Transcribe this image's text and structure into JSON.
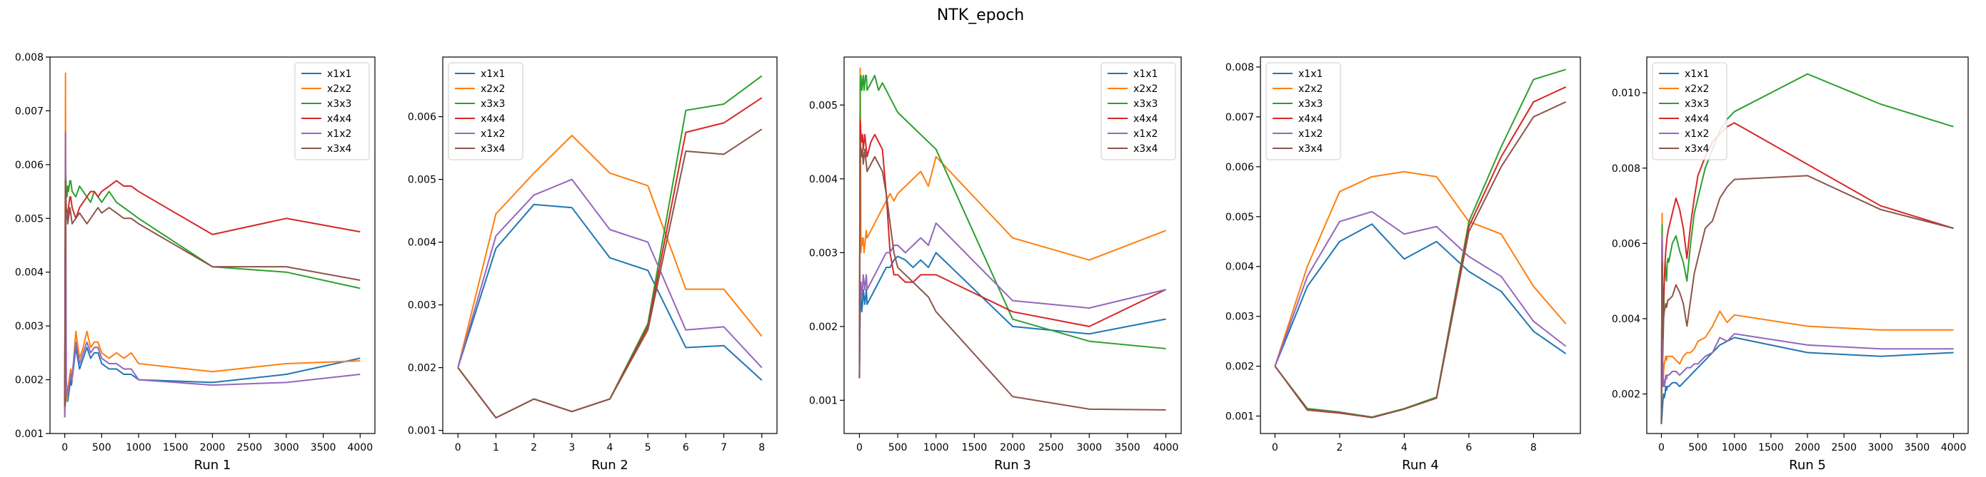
{
  "figure": {
    "title": "NTK_epoch"
  },
  "series_names": [
    "x1x1",
    "x2x2",
    "x3x3",
    "x4x4",
    "x1x2",
    "x3x4"
  ],
  "colors": [
    "#1f77b4",
    "#ff7f0e",
    "#2ca02c",
    "#d62728",
    "#9467bd",
    "#8c564b"
  ],
  "chart_data": [
    {
      "type": "line",
      "xlabel": "Run 1",
      "legend": "top-right",
      "xlim": [
        -200,
        4200
      ],
      "ylim": [
        0.001,
        0.008
      ],
      "xticks": [
        0,
        500,
        1000,
        1500,
        2000,
        2500,
        3000,
        3500,
        4000
      ],
      "yticks": [
        0.001,
        0.002,
        0.003,
        0.004,
        0.005,
        0.006,
        0.007,
        0.008
      ],
      "ytick_labels": [
        "0.001",
        "0.002",
        "0.003",
        "0.004",
        "0.005",
        "0.006",
        "0.007",
        "0.008"
      ],
      "x": [
        0,
        10,
        20,
        30,
        40,
        50,
        60,
        70,
        80,
        90,
        100,
        150,
        200,
        250,
        300,
        350,
        400,
        450,
        500,
        600,
        700,
        800,
        900,
        1000,
        2000,
        3000,
        4000
      ],
      "series": [
        {
          "name": "x1x1",
          "values": [
            0.0014,
            0.0016,
            0.0018,
            0.0017,
            0.0016,
            0.0017,
            0.0018,
            0.0019,
            0.002,
            0.0019,
            0.002,
            0.0026,
            0.0022,
            0.0024,
            0.0026,
            0.0024,
            0.0025,
            0.0025,
            0.0023,
            0.0022,
            0.0022,
            0.0021,
            0.0021,
            0.002,
            0.00195,
            0.0021,
            0.0024
          ]
        },
        {
          "name": "x2x2",
          "values": [
            0.0013,
            0.0077,
            0.002,
            0.0016,
            0.0018,
            0.0019,
            0.002,
            0.0021,
            0.0022,
            0.0021,
            0.002,
            0.0029,
            0.0024,
            0.0026,
            0.0029,
            0.0026,
            0.0027,
            0.0027,
            0.0025,
            0.0024,
            0.0025,
            0.0024,
            0.0025,
            0.0023,
            0.00215,
            0.0023,
            0.00235
          ]
        },
        {
          "name": "x3x3",
          "values": [
            0.0016,
            0.006,
            0.0055,
            0.0054,
            0.0056,
            0.0055,
            0.0056,
            0.0057,
            0.0057,
            0.0056,
            0.0055,
            0.0054,
            0.0056,
            0.0055,
            0.0054,
            0.0053,
            0.0055,
            0.0054,
            0.0053,
            0.0055,
            0.0053,
            0.0052,
            0.0051,
            0.005,
            0.0041,
            0.004,
            0.0037
          ]
        },
        {
          "name": "x4x4",
          "values": [
            0.0015,
            0.0055,
            0.0051,
            0.005,
            0.0051,
            0.0052,
            0.0053,
            0.0054,
            0.0054,
            0.0053,
            0.0052,
            0.005,
            0.0052,
            0.0053,
            0.0054,
            0.0055,
            0.0055,
            0.0054,
            0.0055,
            0.0056,
            0.0057,
            0.0056,
            0.0056,
            0.0055,
            0.0047,
            0.005,
            0.00475
          ]
        },
        {
          "name": "x1x2",
          "values": [
            0.0013,
            0.0066,
            0.002,
            0.0018,
            0.0017,
            0.0018,
            0.0019,
            0.002,
            0.0021,
            0.002,
            0.0021,
            0.0027,
            0.0023,
            0.0025,
            0.0027,
            0.0025,
            0.0026,
            0.0026,
            0.0024,
            0.0023,
            0.0023,
            0.0022,
            0.0022,
            0.002,
            0.0019,
            0.00195,
            0.0021
          ]
        },
        {
          "name": "x3x4",
          "values": [
            0.0015,
            0.0057,
            0.0052,
            0.0051,
            0.0049,
            0.005,
            0.0051,
            0.0052,
            0.0051,
            0.005,
            0.0049,
            0.005,
            0.0051,
            0.005,
            0.0049,
            0.005,
            0.0051,
            0.0052,
            0.0051,
            0.0052,
            0.0051,
            0.005,
            0.005,
            0.0049,
            0.0041,
            0.0041,
            0.00385
          ]
        }
      ]
    },
    {
      "type": "line",
      "xlabel": "Run 2",
      "legend": "top-left",
      "xlim": [
        -0.4,
        8.4
      ],
      "ylim": [
        0.00095,
        0.00695
      ],
      "xticks": [
        0,
        1,
        2,
        3,
        4,
        5,
        6,
        7,
        8
      ],
      "yticks": [
        0.001,
        0.002,
        0.003,
        0.004,
        0.005,
        0.006
      ],
      "ytick_labels": [
        "0.001",
        "0.002",
        "0.003",
        "0.004",
        "0.005",
        "0.006"
      ],
      "x": [
        0,
        1,
        2,
        3,
        4,
        5,
        6,
        7,
        8
      ],
      "series": [
        {
          "name": "x1x1",
          "values": [
            0.002,
            0.0039,
            0.0046,
            0.00455,
            0.00375,
            0.00355,
            0.00232,
            0.00235,
            0.0018
          ]
        },
        {
          "name": "x2x2",
          "values": [
            0.002,
            0.00445,
            0.0051,
            0.0057,
            0.0051,
            0.0049,
            0.00325,
            0.00325,
            0.0025
          ]
        },
        {
          "name": "x3x3",
          "values": [
            0.002,
            0.0012,
            0.0015,
            0.0013,
            0.0015,
            0.0027,
            0.0061,
            0.0062,
            0.00665
          ]
        },
        {
          "name": "x4x4",
          "values": [
            0.002,
            0.0012,
            0.0015,
            0.0013,
            0.0015,
            0.00265,
            0.00575,
            0.0059,
            0.0063
          ]
        },
        {
          "name": "x1x2",
          "values": [
            0.002,
            0.0041,
            0.00475,
            0.005,
            0.0042,
            0.004,
            0.0026,
            0.00265,
            0.002
          ]
        },
        {
          "name": "x3x4",
          "values": [
            0.002,
            0.0012,
            0.0015,
            0.0013,
            0.0015,
            0.0026,
            0.00545,
            0.0054,
            0.0058
          ]
        }
      ]
    },
    {
      "type": "line",
      "xlabel": "Run 3",
      "legend": "top-right",
      "xlim": [
        -200,
        4200
      ],
      "ylim": [
        0.00055,
        0.00565
      ],
      "xticks": [
        0,
        500,
        1000,
        1500,
        2000,
        2500,
        3000,
        3500,
        4000
      ],
      "yticks": [
        0.001,
        0.002,
        0.003,
        0.004,
        0.005
      ],
      "ytick_labels": [
        "0.001",
        "0.002",
        "0.003",
        "0.004",
        "0.005"
      ],
      "x": [
        0,
        10,
        20,
        30,
        40,
        50,
        60,
        70,
        80,
        90,
        100,
        150,
        200,
        250,
        300,
        350,
        400,
        450,
        500,
        600,
        700,
        800,
        900,
        1000,
        2000,
        3000,
        4000
      ],
      "series": [
        {
          "name": "x1x1",
          "values": [
            0.0013,
            0.0023,
            0.0024,
            0.0022,
            0.0023,
            0.0025,
            0.0024,
            0.0023,
            0.0024,
            0.0025,
            0.0023,
            0.0024,
            0.0025,
            0.0026,
            0.0027,
            0.0028,
            0.0028,
            0.0029,
            0.00295,
            0.0029,
            0.0028,
            0.0029,
            0.0028,
            0.003,
            0.002,
            0.0019,
            0.0021
          ]
        },
        {
          "name": "x2x2",
          "values": [
            0.0013,
            0.0055,
            0.003,
            0.0032,
            0.0031,
            0.0032,
            0.003,
            0.0031,
            0.0032,
            0.0033,
            0.0032,
            0.0033,
            0.0034,
            0.0035,
            0.0036,
            0.0037,
            0.0038,
            0.0037,
            0.0038,
            0.0039,
            0.004,
            0.0041,
            0.0039,
            0.0043,
            0.0032,
            0.0029,
            0.0033
          ]
        },
        {
          "name": "x3x3",
          "values": [
            0.0013,
            0.0053,
            0.0054,
            0.0052,
            0.0053,
            0.0054,
            0.0052,
            0.0053,
            0.0054,
            0.0054,
            0.0052,
            0.0053,
            0.0054,
            0.0052,
            0.0053,
            0.0052,
            0.0051,
            0.005,
            0.0049,
            0.0048,
            0.0047,
            0.0046,
            0.0045,
            0.0044,
            0.0021,
            0.0018,
            0.0017
          ]
        },
        {
          "name": "x4x4",
          "values": [
            0.0013,
            0.0048,
            0.0046,
            0.0045,
            0.0046,
            0.0044,
            0.0045,
            0.0046,
            0.0045,
            0.0044,
            0.0043,
            0.0045,
            0.0046,
            0.0045,
            0.0044,
            0.0038,
            0.003,
            0.0027,
            0.0027,
            0.0026,
            0.0026,
            0.0027,
            0.0027,
            0.0027,
            0.0022,
            0.002,
            0.0025
          ]
        },
        {
          "name": "x1x2",
          "values": [
            0.0013,
            0.0025,
            0.0026,
            0.0024,
            0.0025,
            0.0027,
            0.0026,
            0.0025,
            0.0026,
            0.0027,
            0.0025,
            0.0026,
            0.0027,
            0.0028,
            0.0029,
            0.003,
            0.003,
            0.0031,
            0.0031,
            0.003,
            0.0031,
            0.0032,
            0.0031,
            0.0034,
            0.00235,
            0.00225,
            0.0025
          ]
        },
        {
          "name": "x3x4",
          "values": [
            0.0013,
            0.0045,
            0.0044,
            0.0043,
            0.0044,
            0.0042,
            0.0043,
            0.0044,
            0.0043,
            0.0042,
            0.0041,
            0.0042,
            0.0043,
            0.0042,
            0.0041,
            0.0038,
            0.0034,
            0.003,
            0.0028,
            0.0027,
            0.0026,
            0.0025,
            0.0024,
            0.0022,
            0.00105,
            0.00088,
            0.00087
          ]
        }
      ]
    },
    {
      "type": "line",
      "xlabel": "Run 4",
      "legend": "top-left",
      "xlim": [
        -0.45,
        9.45
      ],
      "ylim": [
        0.00065,
        0.0082
      ],
      "xticks": [
        0,
        2,
        4,
        6,
        8
      ],
      "yticks": [
        0.001,
        0.002,
        0.003,
        0.004,
        0.005,
        0.006,
        0.007,
        0.008
      ],
      "ytick_labels": [
        "0.001",
        "0.002",
        "0.003",
        "0.004",
        "0.005",
        "0.006",
        "0.007",
        "0.008"
      ],
      "x": [
        0,
        1,
        2,
        3,
        4,
        5,
        6,
        7,
        8,
        9
      ],
      "series": [
        {
          "name": "x1x1",
          "values": [
            0.002,
            0.0036,
            0.0045,
            0.00485,
            0.00415,
            0.0045,
            0.0039,
            0.0035,
            0.0027,
            0.00225
          ]
        },
        {
          "name": "x2x2",
          "values": [
            0.002,
            0.004,
            0.0055,
            0.0058,
            0.0059,
            0.0058,
            0.0049,
            0.00465,
            0.0036,
            0.00285
          ]
        },
        {
          "name": "x3x3",
          "values": [
            0.002,
            0.00115,
            0.00108,
            0.00098,
            0.00115,
            0.00138,
            0.0049,
            0.0064,
            0.00775,
            0.00795
          ]
        },
        {
          "name": "x4x4",
          "values": [
            0.002,
            0.00112,
            0.00106,
            0.00097,
            0.00114,
            0.00136,
            0.0048,
            0.0062,
            0.0073,
            0.0076
          ]
        },
        {
          "name": "x1x2",
          "values": [
            0.002,
            0.0038,
            0.0049,
            0.0051,
            0.00465,
            0.0048,
            0.0042,
            0.0038,
            0.0029,
            0.0024
          ]
        },
        {
          "name": "x3x4",
          "values": [
            0.002,
            0.00113,
            0.00107,
            0.00097,
            0.00114,
            0.00136,
            0.0047,
            0.006,
            0.007,
            0.0073
          ]
        }
      ]
    },
    {
      "type": "line",
      "xlabel": "Run 5",
      "legend": "top-left",
      "xlim": [
        -200,
        4200
      ],
      "ylim": [
        0.00095,
        0.01095
      ],
      "xticks": [
        0,
        500,
        1000,
        1500,
        2000,
        2500,
        3000,
        3500,
        4000
      ],
      "yticks": [
        0.002,
        0.004,
        0.006,
        0.008,
        0.01
      ],
      "ytick_labels": [
        "0.002",
        "0.004",
        "0.006",
        "0.008",
        "0.010"
      ],
      "x": [
        0,
        10,
        20,
        30,
        40,
        50,
        60,
        70,
        80,
        90,
        100,
        150,
        200,
        250,
        300,
        350,
        400,
        450,
        500,
        600,
        700,
        800,
        900,
        1000,
        2000,
        3000,
        4000
      ],
      "series": [
        {
          "name": "x1x1",
          "values": [
            0.0012,
            0.0015,
            0.0018,
            0.002,
            0.0019,
            0.002,
            0.0022,
            0.0021,
            0.0022,
            0.0022,
            0.0022,
            0.0023,
            0.0023,
            0.0022,
            0.0023,
            0.0024,
            0.0025,
            0.0026,
            0.0027,
            0.0029,
            0.0031,
            0.0033,
            0.0034,
            0.0035,
            0.0031,
            0.003,
            0.0031
          ]
        },
        {
          "name": "x2x2",
          "values": [
            0.0012,
            0.0068,
            0.0022,
            0.0026,
            0.0028,
            0.0029,
            0.003,
            0.0029,
            0.003,
            0.003,
            0.003,
            0.003,
            0.0029,
            0.0028,
            0.003,
            0.0031,
            0.0031,
            0.0032,
            0.0034,
            0.0035,
            0.0038,
            0.0042,
            0.0039,
            0.0041,
            0.0038,
            0.0037,
            0.0037
          ]
        },
        {
          "name": "x3x3",
          "values": [
            0.0012,
            0.0065,
            0.003,
            0.004,
            0.005,
            0.0055,
            0.0052,
            0.005,
            0.0055,
            0.0056,
            0.0055,
            0.006,
            0.0062,
            0.0058,
            0.0055,
            0.005,
            0.006,
            0.0068,
            0.0072,
            0.008,
            0.0085,
            0.009,
            0.0093,
            0.0095,
            0.0105,
            0.0097,
            0.0091
          ]
        },
        {
          "name": "x4x4",
          "values": [
            0.0012,
            0.0062,
            0.004,
            0.0045,
            0.005,
            0.0055,
            0.0058,
            0.006,
            0.0062,
            0.0063,
            0.0064,
            0.0068,
            0.0072,
            0.0069,
            0.0064,
            0.0056,
            0.0065,
            0.0072,
            0.0078,
            0.0083,
            0.0087,
            0.0089,
            0.0091,
            0.0092,
            0.0081,
            0.007,
            0.0064
          ]
        },
        {
          "name": "x1x2",
          "values": [
            0.0012,
            0.0062,
            0.0022,
            0.0024,
            0.0022,
            0.0023,
            0.0025,
            0.0024,
            0.0025,
            0.0025,
            0.0025,
            0.0026,
            0.0026,
            0.0025,
            0.0026,
            0.0027,
            0.0027,
            0.0028,
            0.0028,
            0.003,
            0.0031,
            0.0035,
            0.0034,
            0.0036,
            0.0033,
            0.0032,
            0.0032
          ]
        },
        {
          "name": "x3x4",
          "values": [
            0.0012,
            0.0055,
            0.0035,
            0.004,
            0.0042,
            0.0043,
            0.0044,
            0.0043,
            0.0044,
            0.0045,
            0.0045,
            0.0046,
            0.0049,
            0.0047,
            0.0044,
            0.0038,
            0.0045,
            0.0052,
            0.0056,
            0.0064,
            0.0066,
            0.0072,
            0.0075,
            0.0077,
            0.0078,
            0.0069,
            0.0064
          ]
        }
      ]
    }
  ]
}
